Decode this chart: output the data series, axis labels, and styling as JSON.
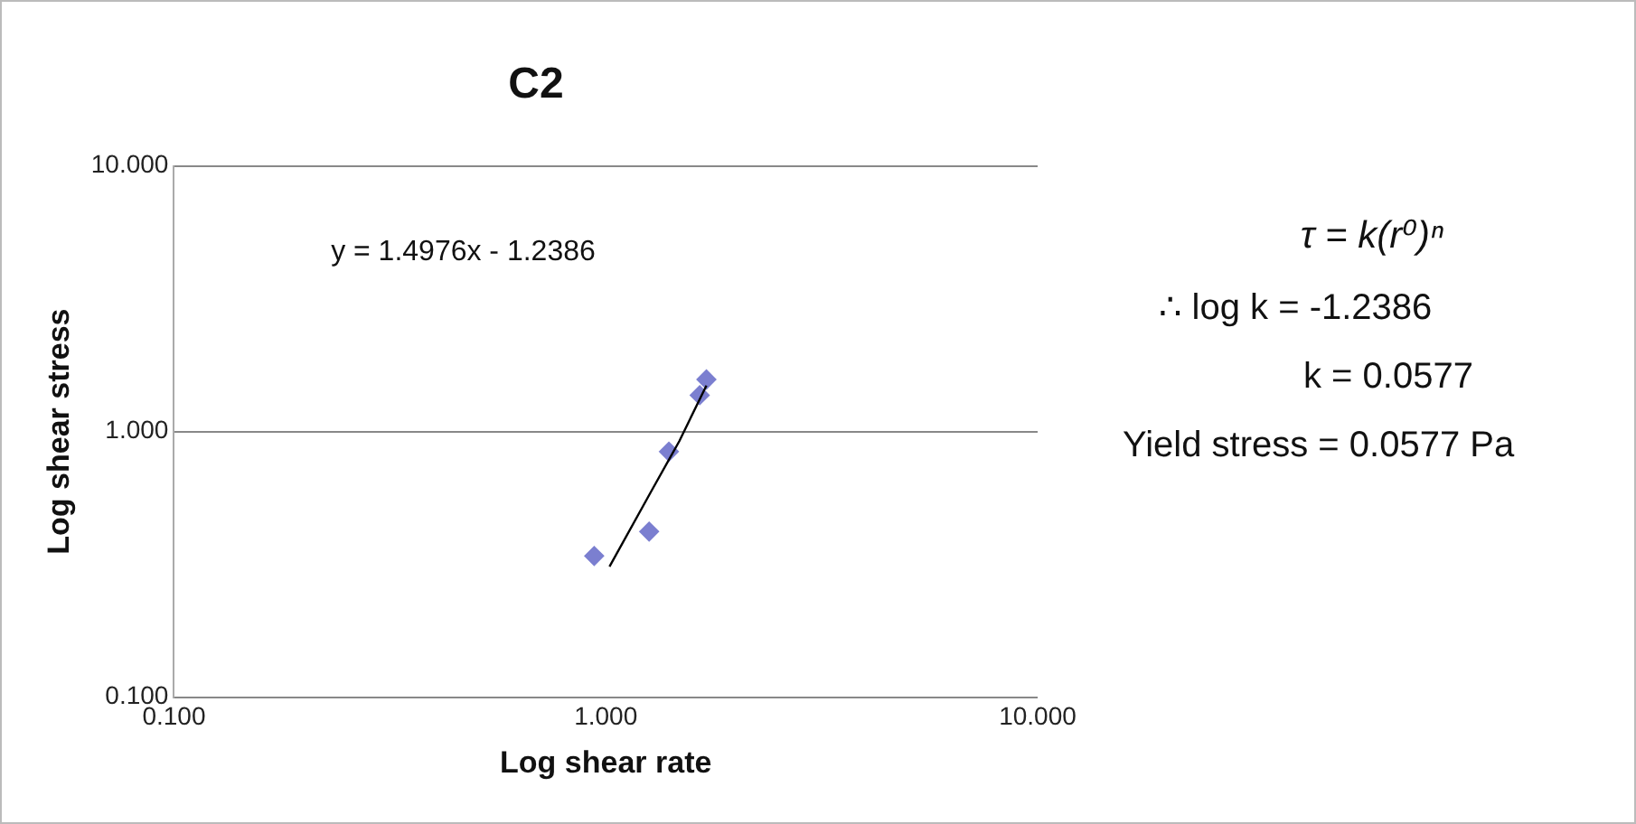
{
  "chart_data": {
    "type": "scatter",
    "title": "C2",
    "xlabel": "Log shear rate",
    "ylabel": "Log shear stress",
    "log": "xy",
    "grid": "y",
    "legend": false,
    "marker": "diamond",
    "xlim": [
      0.1,
      10
    ],
    "xticks": [
      {
        "value": 0.1,
        "label": "0.100"
      },
      {
        "value": 1,
        "label": "1.000"
      },
      {
        "value": 10,
        "label": "10.000"
      }
    ],
    "ylim": [
      0.1,
      10
    ],
    "yticks": [
      {
        "value": 0.1,
        "label": "0.100"
      },
      {
        "value": 1,
        "label": "1.000"
      },
      {
        "value": 10,
        "label": "10.000"
      }
    ],
    "series": [
      {
        "color": "#7b7fd0",
        "x": [
          0.94,
          1.26,
          1.4,
          1.65,
          1.71
        ],
        "values": [
          0.34,
          0.42,
          0.84,
          1.37,
          1.57
        ]
      },
      {
        "type": "line",
        "color": "#000000",
        "marker": "none",
        "x": [
          1.02,
          1.27,
          1.48,
          1.71
        ],
        "values": [
          0.31,
          0.59,
          0.92,
          1.49
        ]
      }
    ],
    "annotations": [
      "y = 1.4976x - 1.2386",
      "τ = k(r⁰)ⁿ",
      "∴ log k = -1.2386",
      "k = 0.0577",
      "Yield stress = 0.0577 Pa"
    ]
  }
}
